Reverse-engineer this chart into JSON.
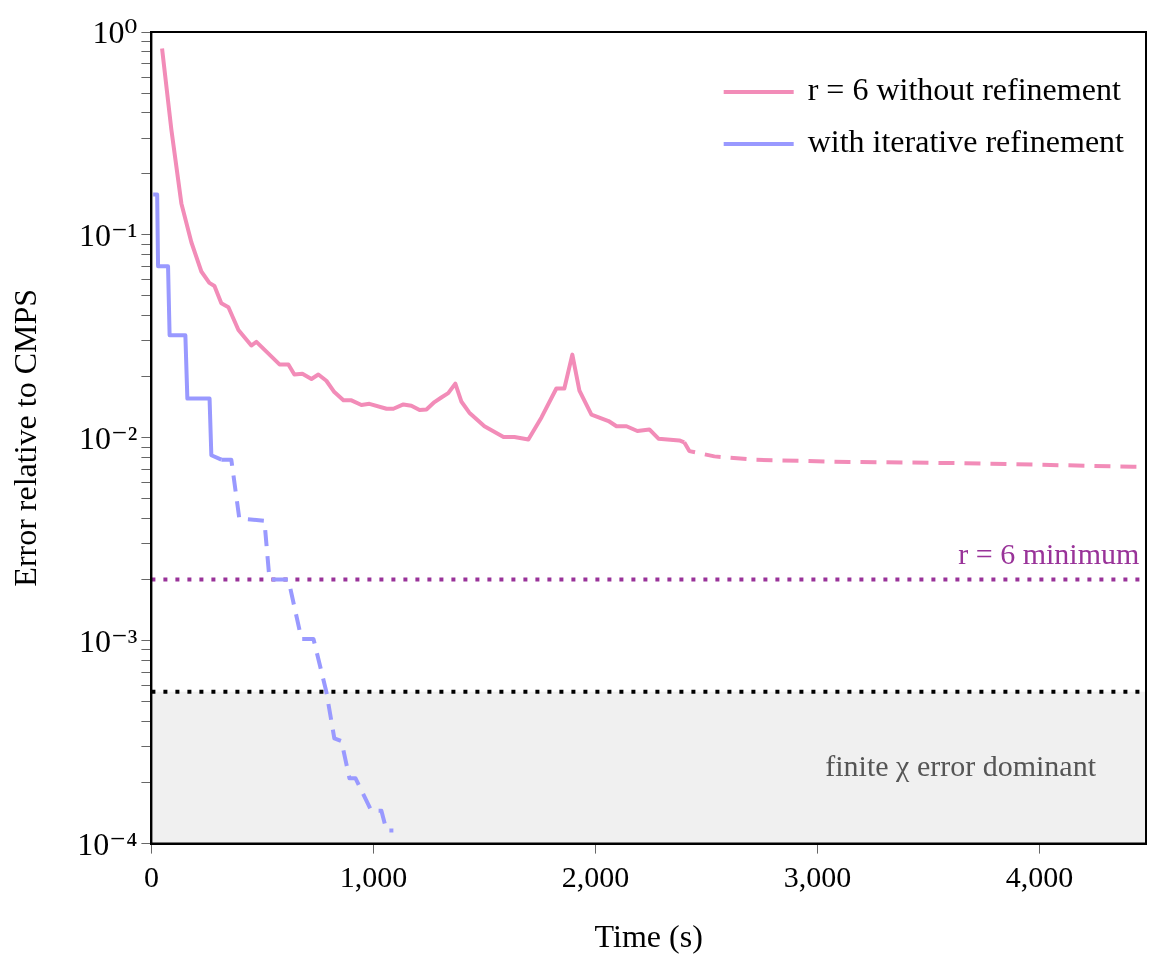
{
  "chart_data": {
    "type": "line",
    "xlabel": "Time (s)",
    "ylabel": "Error relative to CMPS",
    "log": "y",
    "grid": false,
    "legend": "top right",
    "xlim": [
      0,
      4480
    ],
    "xticks": [
      0,
      {
        "value": 1000,
        "label": "1,000"
      },
      {
        "value": 2000,
        "label": "2,000"
      },
      {
        "value": 3000,
        "label": "3,000"
      },
      {
        "value": 4000,
        "label": "4,000"
      }
    ],
    "ylim": [
      0.0001,
      1
    ],
    "yticks": [
      {
        "value": 0.0001,
        "label": "10⁻⁴"
      },
      {
        "value": 0.0002,
        "label": null
      },
      {
        "value": 0.0003,
        "label": null
      },
      {
        "value": 0.0004,
        "label": null
      },
      {
        "value": 0.0005,
        "label": null
      },
      {
        "value": 0.0006,
        "label": null
      },
      {
        "value": 0.0007,
        "label": null
      },
      {
        "value": 0.0008,
        "label": null
      },
      {
        "value": 0.0009,
        "label": null
      },
      {
        "value": 0.001,
        "label": "10⁻³"
      },
      {
        "value": 0.002,
        "label": null
      },
      {
        "value": 0.003,
        "label": null
      },
      {
        "value": 0.004,
        "label": null
      },
      {
        "value": 0.005,
        "label": null
      },
      {
        "value": 0.006,
        "label": null
      },
      {
        "value": 0.007,
        "label": null
      },
      {
        "value": 0.008,
        "label": null
      },
      {
        "value": 0.009,
        "label": null
      },
      {
        "value": 0.01,
        "label": "10⁻²"
      },
      {
        "value": 0.02,
        "label": null
      },
      {
        "value": 0.03,
        "label": null
      },
      {
        "value": 0.04,
        "label": null
      },
      {
        "value": 0.05,
        "label": null
      },
      {
        "value": 0.06,
        "label": null
      },
      {
        "value": 0.07,
        "label": null
      },
      {
        "value": 0.08,
        "label": null
      },
      {
        "value": 0.09,
        "label": null
      },
      {
        "value": 0.1,
        "label": "10⁻¹"
      },
      {
        "value": 0.2,
        "label": null
      },
      {
        "value": 0.3,
        "label": null
      },
      {
        "value": 0.4,
        "label": null
      },
      {
        "value": 0.5,
        "label": null
      },
      {
        "value": 0.6,
        "label": null
      },
      {
        "value": 0.7,
        "label": null
      },
      {
        "value": 0.8,
        "label": null
      },
      {
        "value": 0.9,
        "label": null
      },
      {
        "value": 1,
        "label": "10⁰"
      }
    ],
    "series": [
      {
        "name": "r = 6 without refinement",
        "color": "#f28cb8",
        "line_style": "solid",
        "x": [
          48,
          90,
          135,
          180,
          225,
          261,
          284,
          315,
          347,
          392,
          450,
          473,
          577,
          617,
          644,
          680,
          721,
          752,
          788,
          824,
          865,
          901,
          946,
          982,
          1059,
          1090,
          1135,
          1171,
          1208,
          1239,
          1275,
          1306,
          1337,
          1369,
          1396,
          1432,
          1500,
          1586,
          1635,
          1698,
          1757,
          1824,
          1860,
          1896,
          1928,
          1982,
          2059,
          2095,
          2140,
          2189,
          2243,
          2284,
          2378,
          2400
        ],
        "values": [
          0.83,
          0.33,
          0.143,
          0.092,
          0.066,
          0.058,
          0.056,
          0.046,
          0.044,
          0.034,
          0.0285,
          0.0297,
          0.023,
          0.023,
          0.0205,
          0.0207,
          0.0195,
          0.0205,
          0.0191,
          0.0168,
          0.0153,
          0.0153,
          0.0145,
          0.0147,
          0.0139,
          0.0139,
          0.0146,
          0.0144,
          0.0137,
          0.0138,
          0.015,
          0.0158,
          0.0166,
          0.0185,
          0.0151,
          0.0133,
          0.0114,
          0.0101,
          0.0101,
          0.0098,
          0.0126,
          0.0175,
          0.0175,
          0.0257,
          0.0171,
          0.013,
          0.0121,
          0.0114,
          0.0114,
          0.0108,
          0.011,
          0.0099,
          0.0097,
          0.0095
        ]
      },
      {
        "color": "#f28cb8",
        "line_style": "dashed",
        "x": [
          2400,
          2423,
          2536,
          2712,
          3144,
          3662,
          4423,
          4465
        ],
        "values": [
          0.0095,
          0.0086,
          0.0081,
          0.0078,
          0.0076,
          0.0075,
          0.0072,
          0.0072
        ]
      },
      {
        "name": "with iterative refinement",
        "color": "#9999ff",
        "line_style": "solid",
        "x": [
          8,
          26,
          30,
          75,
          82,
          153,
          162,
          262,
          270,
          315
        ],
        "values": [
          0.158,
          0.158,
          0.07,
          0.07,
          0.032,
          0.032,
          0.0156,
          0.0156,
          0.0082,
          0.0078
        ]
      },
      {
        "color": "#9999ff",
        "line_style": "dashed",
        "x": [
          315,
          360,
          396,
          509,
          532,
          617,
          676,
          730,
          788,
          824,
          856,
          892,
          919,
          991,
          1036,
          1059,
          1090
        ],
        "values": [
          0.0078,
          0.0078,
          0.004,
          0.0039,
          0.002,
          0.002,
          0.00102,
          0.00102,
          0.00056,
          0.00033,
          0.00032,
          0.00021,
          0.00021,
          0.000145,
          0.000145,
          0.000116,
          0.000116
        ]
      }
    ],
    "annotations": [
      {
        "text": "r = 6 minimum",
        "x": 4450,
        "y": 0.002
      }
    ],
    "ref_lines": [
      {
        "axis": "y",
        "value": 0.002,
        "color": "#993399",
        "line_style": "dotted"
      },
      {
        "axis": "y",
        "value": 0.00056,
        "color": "#000000",
        "line_style": "dotted"
      }
    ],
    "bands": [
      {
        "axis": "y",
        "from": 0.0001,
        "to": 0.00056,
        "label": "finite χ error dominant",
        "color": "#f0f0f0"
      }
    ]
  }
}
